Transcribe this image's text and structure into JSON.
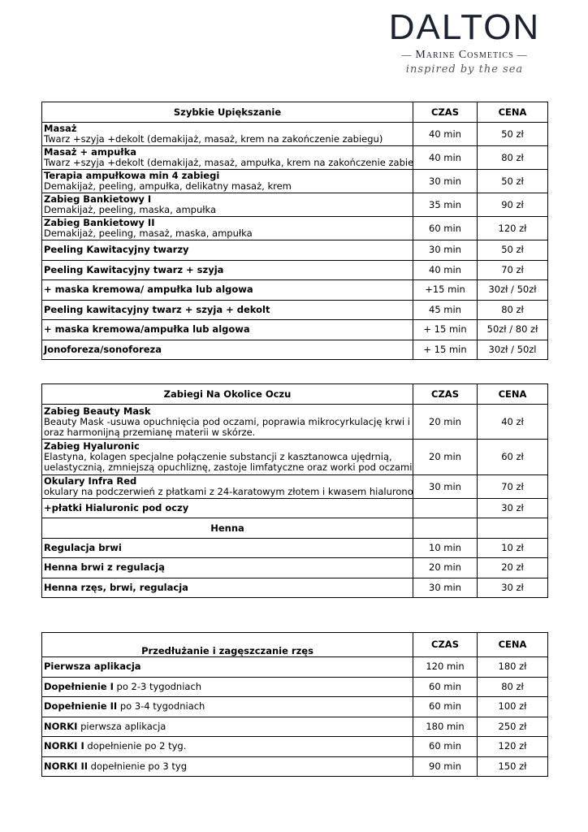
{
  "logo": {
    "brand": "DALTON",
    "subtitle": "Marine Cosmetics",
    "tagline": "inspired by the sea"
  },
  "tables": [
    {
      "title": "Szybkie  Upiększanie",
      "col_time": "CZAS",
      "col_price": "CENA",
      "rows": [
        {
          "name": "Masaż",
          "desc": "Twarz +szyja +dekolt (demakijaż, masaż, krem na zakończenie zabiegu)",
          "time": "40 min",
          "price": "50 zł"
        },
        {
          "name": "Masaż + ampułka",
          "desc": "Twarz +szyja +dekolt (demakijaż, masaż, ampułka, krem na zakończenie zabiegu)",
          "time": "40 min",
          "price": "80 zł"
        },
        {
          "name": "Terapia ampułkowa min 4 zabiegi",
          "desc": "Demakijaż, peeling, ampułka,  delikatny masaż, krem",
          "time": "30 min",
          "price": "50 zł"
        },
        {
          "name": "Zabieg Bankietowy I",
          "desc": "Demakijaż, peeling, maska, ampułka",
          "time": "35 min",
          "price": "90 zł"
        },
        {
          "name": "Zabieg Bankietowy II",
          "desc": "Demakijaż, peeling, masaż, maska, ampułka",
          "time": "60 min",
          "price": "120 zł"
        },
        {
          "name": "Peeling Kawitacyjny twarzy",
          "time": "30 min",
          "price": "50 zł"
        },
        {
          "name": "Peeling Kawitacyjny twarz + szyja",
          "time": "40 min",
          "price": "70 zł"
        },
        {
          "name": "+ maska kremowa/ ampułka lub algowa",
          "time": "+15 min",
          "price": "30zł / 50zł"
        },
        {
          "name": "Peeling kawitacyjny twarz + szyja + dekolt",
          "time": "45 min",
          "price": "80 zł"
        },
        {
          "name": "+ maska kremowa/ampułka lub algowa",
          "time": "+ 15 min",
          "price": "50zł / 80 zł"
        },
        {
          "name": "Jonoforeza/sonoforeza",
          "time": "+ 15 min",
          "price": "30zł / 50zl"
        }
      ]
    },
    {
      "title": "Zabiegi Na Okolice Oczu",
      "col_time": "CZAS",
      "col_price": "CENA",
      "rows": [
        {
          "name": "Zabieg Beauty Mask",
          "desc": "Beauty Mask -usuwa opuchnięcia pod oczami, poprawia mikrocyrkulację krwi i limfy",
          "desc2": "oraz harmonijną przemianę materii w skórze.",
          "time": "20 min",
          "price": "40 zł"
        },
        {
          "name": "Zabieg Hyaluronic",
          "desc": "Elastyna, kolagen specjalne połączenie substancji z kasztanowca ujędrnią,",
          "desc2": "uelastycznią, zmniejszą opuchliznę, zastoje limfatyczne oraz worki pod oczami.",
          "time": "20 min",
          "price": "60 zł"
        },
        {
          "name": "Okulary Infra Red",
          "desc": "okulary na podczerwień z płatkami z 24-karatowym złotem i kwasem hialuronowym",
          "time": "30 min",
          "price": "70 zł"
        },
        {
          "name": "+płatki Hialuronic pod oczy",
          "time": "",
          "price": "30 zł"
        }
      ],
      "subsection": {
        "title": "Henna",
        "rows": [
          {
            "name": "Regulacja brwi",
            "time": "10 min",
            "price": "10 zł"
          },
          {
            "name": "Henna brwi z regulacją",
            "time": "20 min",
            "price": "20 zł"
          },
          {
            "name": "Henna rzęs, brwi, regulacja",
            "time": "30 min",
            "price": "30 zł"
          }
        ]
      }
    },
    {
      "title": "Przedłużanie i zagęszczanie rzęs",
      "col_time": "CZAS",
      "col_price": "CENA",
      "rows": [
        {
          "name": "Pierwsza aplikacja",
          "rest": "",
          "time": "120 min",
          "price": "180 zł"
        },
        {
          "name": "Dopełnienie I",
          "rest": " po 2-3 tygodniach",
          "time": "60 min",
          "price": "80 zł"
        },
        {
          "name": "Dopełnienie II",
          "rest": " po 3-4 tygodniach",
          "time": "60 min",
          "price": "100 zł"
        },
        {
          "name": "NORKI",
          "rest": " pierwsza aplikacja",
          "time": "180 min",
          "price": "250 zł"
        },
        {
          "name": "NORKI I",
          "rest": " dopełnienie po 2 tyg.",
          "time": "60 min",
          "price": "120 zł"
        },
        {
          "name": "NORKI II",
          "rest": " dopełnienie po 3 tyg",
          "time": "90 min",
          "price": "150 zł"
        }
      ]
    }
  ]
}
